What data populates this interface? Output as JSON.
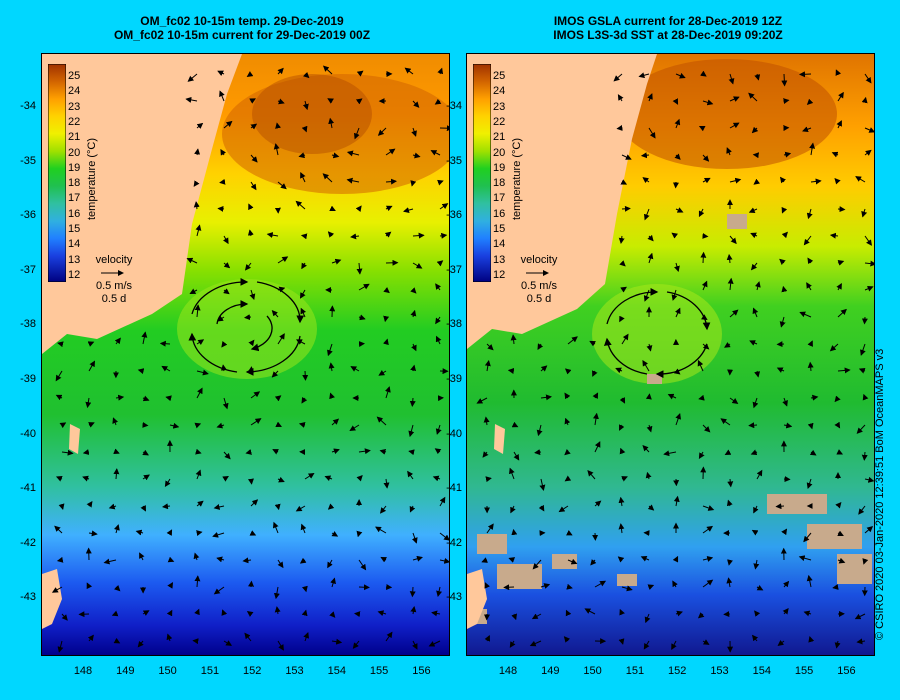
{
  "left_panel": {
    "title_line1": "OM_fc02 10-15m temp. 29-Dec-2019",
    "title_line2": "OM_fc02 10-15m current for 29-Dec-2019 00Z"
  },
  "right_panel": {
    "title_line1": "IMOS GSLA current for 28-Dec-2019 12Z",
    "title_line2": "IMOS L3S-3d SST at 28-Dec-2019 09:20Z"
  },
  "colorbar": {
    "label": "temperature (°C)",
    "ticks": [
      "25",
      "24",
      "23",
      "22",
      "21",
      "20",
      "19",
      "18",
      "17",
      "16",
      "15",
      "14",
      "13",
      "12"
    ]
  },
  "velocity_legend": {
    "title": "velocity",
    "speed": "0.5 m/s",
    "duration": "0.5 d"
  },
  "latitude_labels": [
    "-34",
    "-35",
    "-36",
    "-37",
    "-38",
    "-39",
    "-40",
    "-41",
    "-42",
    "-43"
  ],
  "longitude_labels": [
    "148",
    "149",
    "150",
    "151",
    "152",
    "153",
    "154",
    "155",
    "156"
  ],
  "credit": "© CSIRO 2020   03-Jan-2020 12:39:51 BoM OceanMAPS v3",
  "colors": {
    "background": "#00d7ff",
    "land": "#ffc89b",
    "no_data": "#c8aa8c"
  }
}
